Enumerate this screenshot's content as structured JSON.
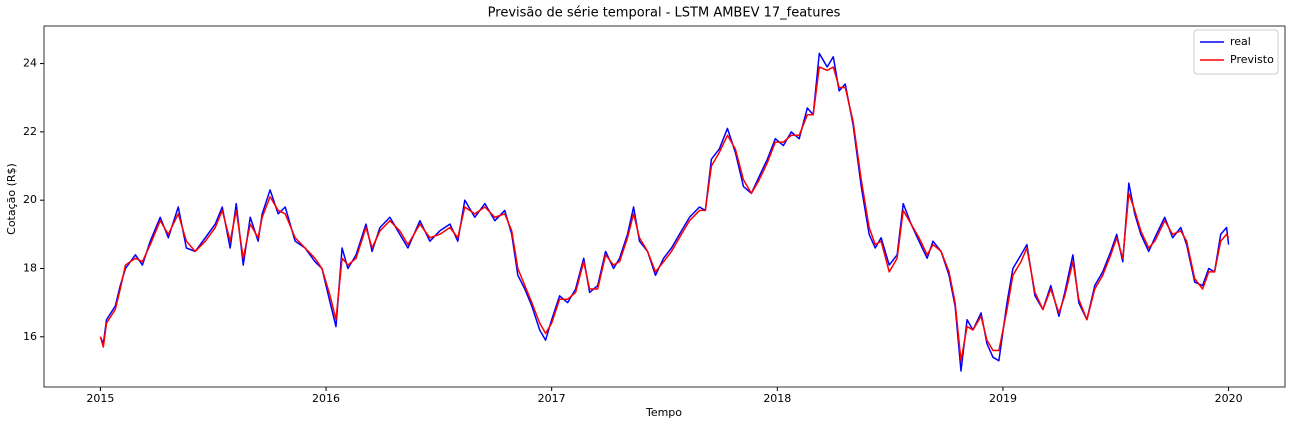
{
  "chart_data": {
    "type": "line",
    "title": "Previsão de série temporal - LSTM AMBEV 17_features",
    "x_label": "Tempo",
    "y_label": "Cotação (R$)",
    "x": [
      2015.0,
      2015.013,
      2015.027,
      2015.066,
      2015.088,
      2015.111,
      2015.155,
      2015.186,
      2015.221,
      2015.265,
      2015.301,
      2015.345,
      2015.381,
      2015.42,
      2015.465,
      2015.509,
      2015.54,
      2015.575,
      2015.602,
      2015.633,
      2015.664,
      2015.699,
      2015.717,
      2015.752,
      2015.788,
      2015.819,
      2015.863,
      2015.907,
      2015.951,
      2015.982,
      2016.018,
      2016.044,
      2016.071,
      2016.097,
      2016.133,
      2016.177,
      2016.204,
      2016.239,
      2016.283,
      2016.327,
      2016.363,
      2016.416,
      2016.46,
      2016.504,
      2016.549,
      2016.584,
      2016.615,
      2016.659,
      2016.704,
      2016.748,
      2016.792,
      2016.823,
      2016.85,
      2016.881,
      2016.912,
      2016.947,
      2016.973,
      2017.0,
      2017.035,
      2017.071,
      2017.106,
      2017.142,
      2017.168,
      2017.204,
      2017.239,
      2017.274,
      2017.301,
      2017.336,
      2017.363,
      2017.389,
      2017.425,
      2017.46,
      2017.496,
      2017.531,
      2017.566,
      2017.611,
      2017.655,
      2017.681,
      2017.708,
      2017.743,
      2017.779,
      2017.814,
      2017.85,
      2017.885,
      2017.92,
      2017.956,
      2017.991,
      2018.027,
      2018.062,
      2018.097,
      2018.133,
      2018.159,
      2018.186,
      2018.221,
      2018.248,
      2018.274,
      2018.301,
      2018.336,
      2018.372,
      2018.407,
      2018.434,
      2018.46,
      2018.496,
      2018.531,
      2018.558,
      2018.593,
      2018.628,
      2018.664,
      2018.69,
      2018.726,
      2018.761,
      2018.788,
      2018.814,
      2018.841,
      2018.867,
      2018.903,
      2018.929,
      2018.956,
      2018.982,
      2019.018,
      2019.044,
      2019.08,
      2019.106,
      2019.142,
      2019.177,
      2019.212,
      2019.248,
      2019.274,
      2019.31,
      2019.336,
      2019.372,
      2019.407,
      2019.442,
      2019.478,
      2019.504,
      2019.531,
      2019.558,
      2019.584,
      2019.611,
      2019.646,
      2019.673,
      2019.717,
      2019.752,
      2019.788,
      2019.814,
      2019.85,
      2019.885,
      2019.912,
      2019.938,
      2019.965,
      2019.991,
      2020.0
    ],
    "series": [
      {
        "name": "real",
        "color": "#0000ff",
        "values": [
          16.0,
          15.8,
          16.5,
          16.9,
          17.5,
          18.0,
          18.4,
          18.1,
          18.8,
          19.5,
          18.9,
          19.8,
          18.6,
          18.5,
          18.9,
          19.3,
          19.8,
          18.6,
          19.9,
          18.1,
          19.5,
          18.8,
          19.6,
          20.3,
          19.6,
          19.8,
          18.8,
          18.6,
          18.2,
          18.0,
          17.0,
          16.3,
          18.6,
          18.0,
          18.4,
          19.3,
          18.5,
          19.2,
          19.5,
          19.0,
          18.6,
          19.4,
          18.8,
          19.1,
          19.3,
          18.8,
          20.0,
          19.5,
          19.9,
          19.4,
          19.7,
          19.0,
          17.8,
          17.4,
          16.9,
          16.2,
          15.9,
          16.5,
          17.2,
          17.0,
          17.4,
          18.3,
          17.3,
          17.5,
          18.5,
          18.0,
          18.3,
          19.0,
          19.8,
          18.8,
          18.5,
          17.8,
          18.3,
          18.6,
          19.0,
          19.5,
          19.8,
          19.7,
          21.2,
          21.5,
          22.1,
          21.4,
          20.4,
          20.2,
          20.7,
          21.2,
          21.8,
          21.6,
          22.0,
          21.8,
          22.7,
          22.5,
          24.3,
          23.9,
          24.2,
          23.2,
          23.4,
          22.2,
          20.4,
          19.0,
          18.6,
          18.9,
          18.1,
          18.4,
          19.9,
          19.3,
          18.8,
          18.3,
          18.8,
          18.5,
          17.8,
          16.9,
          15.0,
          16.5,
          16.2,
          16.7,
          15.8,
          15.4,
          15.3,
          17.0,
          18.0,
          18.4,
          18.7,
          17.2,
          16.8,
          17.5,
          16.6,
          17.3,
          18.4,
          17.0,
          16.5,
          17.5,
          17.9,
          18.5,
          19.0,
          18.2,
          20.5,
          19.6,
          19.0,
          18.5,
          18.9,
          19.5,
          18.9,
          19.2,
          18.7,
          17.6,
          17.5,
          18.0,
          17.9,
          19.0,
          19.2,
          18.7
        ]
      },
      {
        "name": "Previsto",
        "color": "#ff0000",
        "values": [
          16.0,
          15.7,
          16.4,
          16.8,
          17.4,
          18.1,
          18.3,
          18.2,
          18.7,
          19.4,
          19.0,
          19.6,
          18.8,
          18.5,
          18.8,
          19.2,
          19.7,
          18.8,
          19.7,
          18.3,
          19.3,
          18.9,
          19.5,
          20.1,
          19.7,
          19.6,
          18.9,
          18.6,
          18.3,
          18.0,
          17.2,
          16.5,
          18.3,
          18.1,
          18.3,
          19.2,
          18.6,
          19.1,
          19.4,
          19.1,
          18.7,
          19.3,
          18.9,
          19.0,
          19.2,
          18.9,
          19.8,
          19.6,
          19.8,
          19.5,
          19.6,
          19.1,
          18.0,
          17.5,
          17.0,
          16.4,
          16.1,
          16.4,
          17.1,
          17.1,
          17.3,
          18.2,
          17.4,
          17.4,
          18.4,
          18.1,
          18.2,
          18.9,
          19.6,
          18.9,
          18.5,
          17.9,
          18.2,
          18.5,
          18.9,
          19.4,
          19.7,
          19.7,
          21.0,
          21.4,
          21.9,
          21.5,
          20.6,
          20.2,
          20.6,
          21.1,
          21.7,
          21.7,
          21.9,
          21.9,
          22.5,
          22.5,
          23.9,
          23.8,
          23.9,
          23.3,
          23.3,
          22.3,
          20.6,
          19.2,
          18.7,
          18.8,
          17.9,
          18.3,
          19.7,
          19.3,
          18.9,
          18.4,
          18.7,
          18.5,
          17.9,
          17.0,
          15.3,
          16.3,
          16.2,
          16.6,
          15.9,
          15.6,
          15.6,
          16.8,
          17.8,
          18.2,
          18.6,
          17.3,
          16.8,
          17.4,
          16.7,
          17.2,
          18.2,
          17.1,
          16.5,
          17.4,
          17.8,
          18.4,
          18.9,
          18.3,
          20.2,
          19.7,
          19.1,
          18.6,
          18.8,
          19.4,
          19.0,
          19.1,
          18.8,
          17.7,
          17.4,
          17.9,
          17.9,
          18.8,
          19.0,
          18.9
        ]
      }
    ],
    "xlim": [
      2014.75,
      2020.25
    ],
    "xticks": [
      2015,
      2016,
      2017,
      2018,
      2019,
      2020
    ],
    "ylim": [
      14.53,
      25.1
    ],
    "yticks": [
      16,
      18,
      20,
      22,
      24
    ],
    "grid": false,
    "legend": "upper right"
  }
}
